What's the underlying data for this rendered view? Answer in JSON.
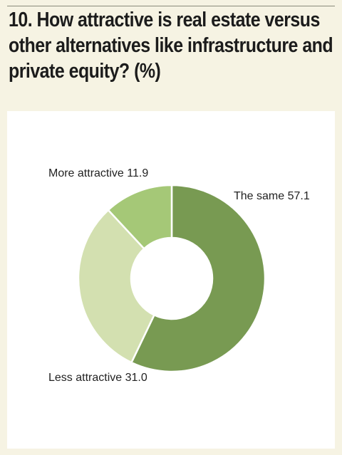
{
  "title": "10. How attractive is real estate versus other alternatives like infrastructure and private equity? (%)",
  "chart_data": {
    "type": "pie",
    "donut": true,
    "title": "10. How attractive is real estate versus other alternatives like infrastructure and private equity? (%)",
    "slices": [
      {
        "label": "The same",
        "value": 57.1,
        "display": "The same 57.1",
        "color": "#789a52"
      },
      {
        "label": "Less attractive",
        "value": 31.0,
        "display": "Less attractive 31.0",
        "color": "#d3e0b0"
      },
      {
        "label": "More attractive",
        "value": 11.9,
        "display": "More attractive 11.9",
        "color": "#a5c877"
      }
    ],
    "legend": "none"
  }
}
